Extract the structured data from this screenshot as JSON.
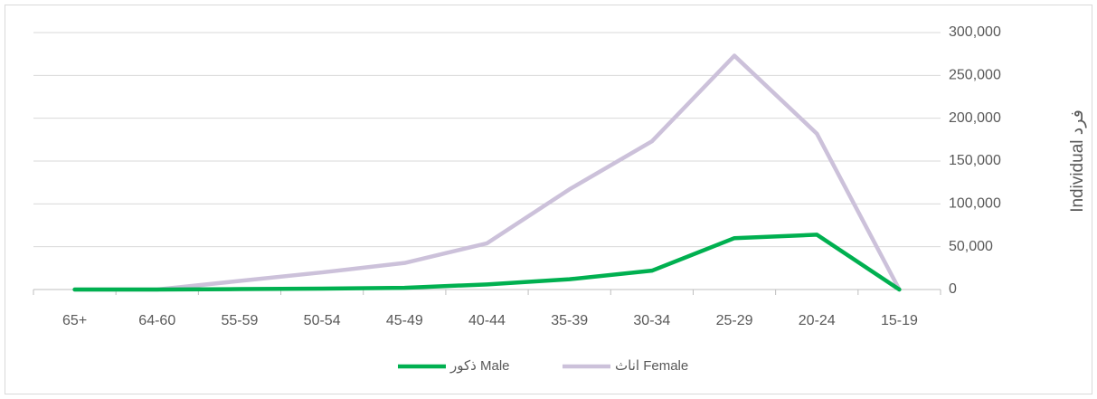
{
  "chart_data": {
    "type": "line",
    "y_axis_label": "Individual فرد",
    "categories": [
      "65+",
      "64-60",
      "55-59",
      "50-54",
      "45-49",
      "40-44",
      "35-39",
      "30-34",
      "25-29",
      "20-24",
      "15-19"
    ],
    "series": [
      {
        "name": "ذکور Male",
        "color": "#00b050",
        "values": [
          0,
          0,
          500,
          1000,
          2000,
          6000,
          12000,
          22000,
          60000,
          64000,
          0
        ]
      },
      {
        "name": "اناث Female",
        "color": "#ccc1da",
        "values": [
          0,
          0,
          10000,
          20000,
          31000,
          54000,
          117000,
          173000,
          273000,
          182000,
          0
        ]
      }
    ],
    "ylim": [
      0,
      300000
    ],
    "yticks": [
      0,
      {
        "value": 50000,
        "label": "50,000"
      },
      {
        "value": 100000,
        "label": "100,000"
      },
      {
        "value": 150000,
        "label": "150,000"
      },
      {
        "value": 200000,
        "label": "200,000"
      },
      {
        "value": 250000,
        "label": "250,000"
      },
      {
        "value": 300000,
        "label": "300,000"
      }
    ],
    "grid": true,
    "y_axis_side": "right",
    "legend": "bottom"
  }
}
